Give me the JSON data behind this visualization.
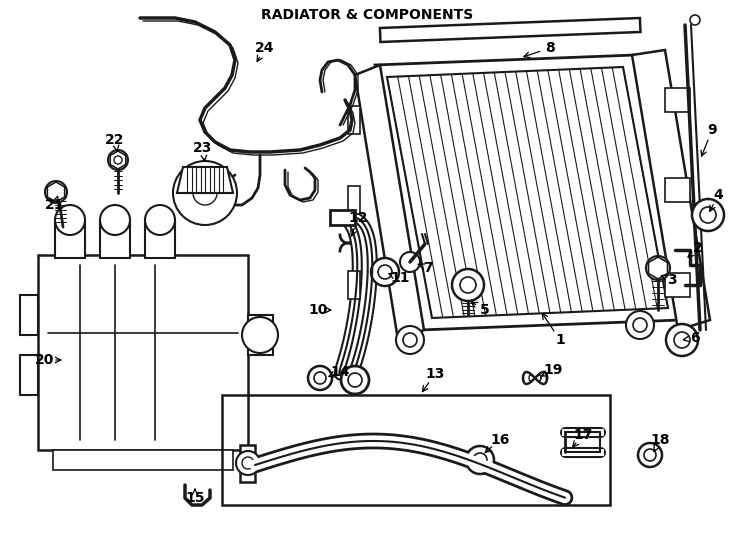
{
  "title": "RADIATOR & COMPONENTS",
  "bg_color": "#ffffff",
  "line_color": "#1a1a1a",
  "figsize": [
    7.34,
    5.4
  ],
  "dpi": 100
}
